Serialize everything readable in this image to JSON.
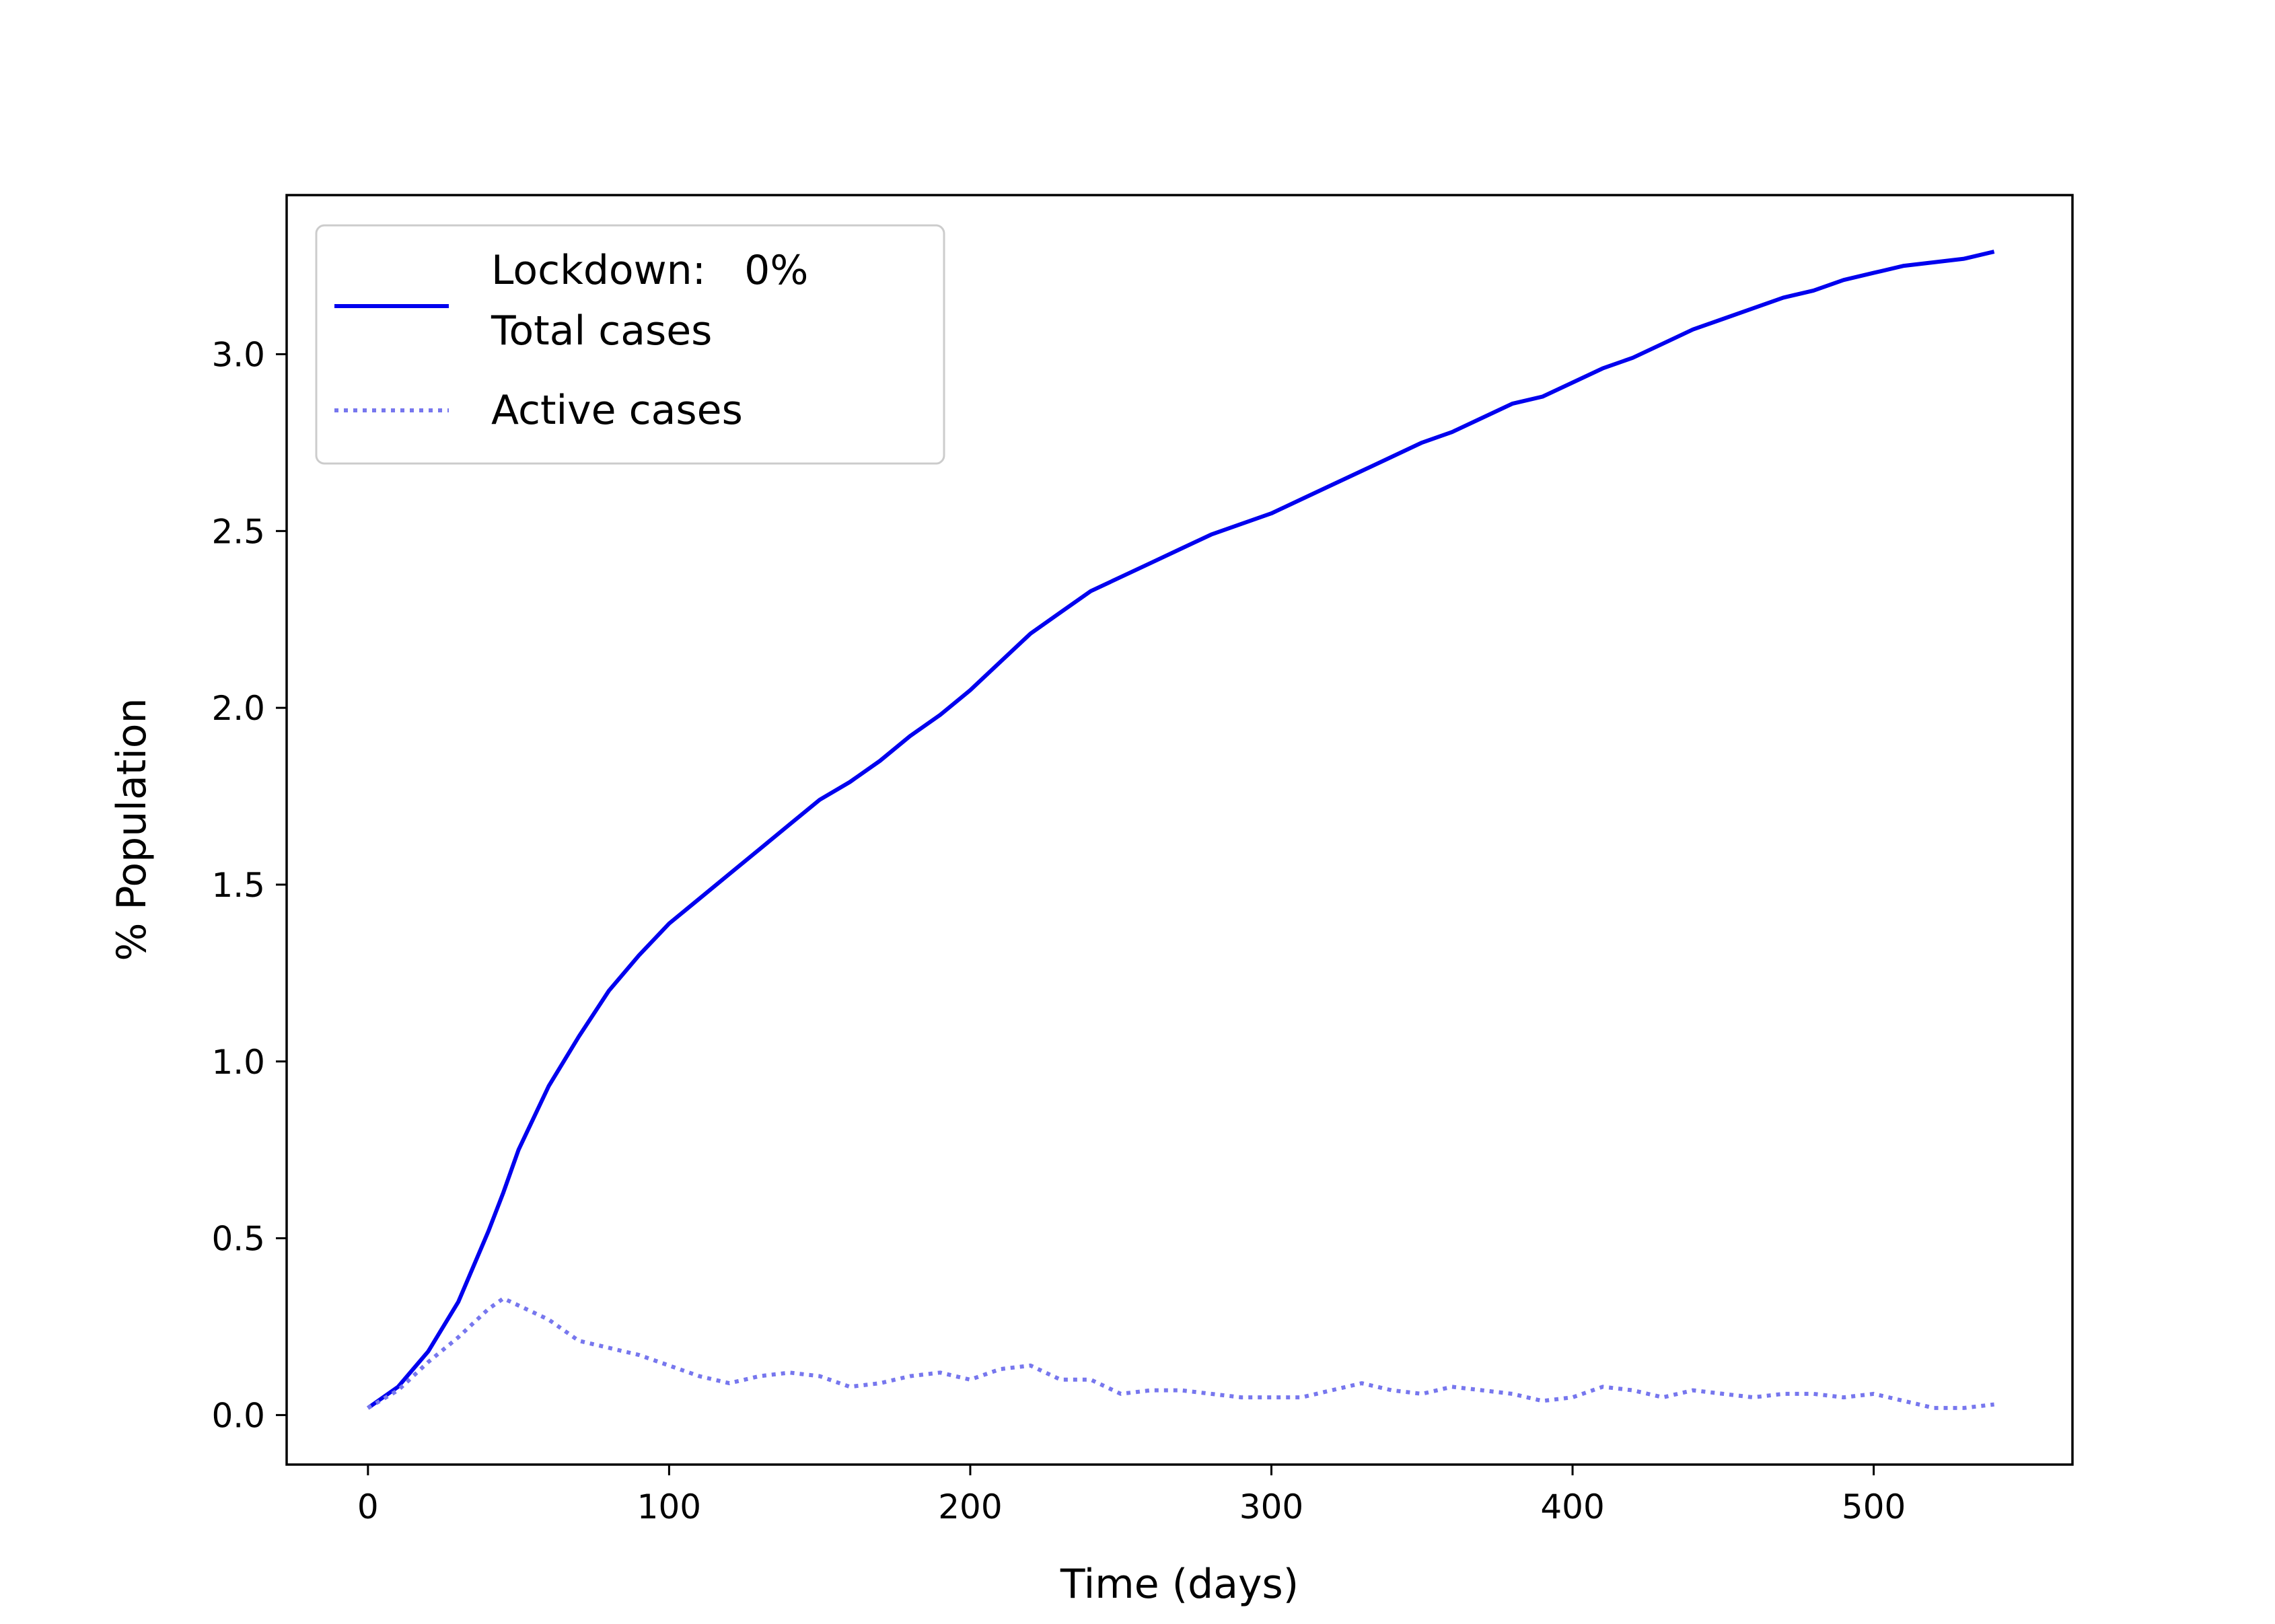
{
  "chart_data": {
    "type": "line",
    "title": "",
    "xlabel": "Time (days)",
    "ylabel": "% Population",
    "xlim": [
      -27,
      566
    ],
    "ylim": [
      -0.14,
      3.45
    ],
    "xticks": [
      0,
      100,
      200,
      300,
      400,
      500
    ],
    "xtick_labels": [
      "0",
      "100",
      "200",
      "300",
      "400",
      "500"
    ],
    "yticks": [
      0.0,
      0.5,
      1.0,
      1.5,
      2.0,
      2.5,
      3.0
    ],
    "ytick_labels": [
      "0.0",
      "0.5",
      "1.0",
      "1.5",
      "2.0",
      "2.5",
      "3.0"
    ],
    "grid": false,
    "legend": {
      "placement": "top-left",
      "entries": [
        {
          "line1": "Lockdown:   0%",
          "line2": "Total cases",
          "style": "solid",
          "color": "#0000ee"
        },
        {
          "line1": "Active cases",
          "line2": "",
          "style": "dotted",
          "color": "#7777ee"
        }
      ]
    },
    "series": [
      {
        "name": "Total cases",
        "style": "solid",
        "color": "#0000ee",
        "x": [
          0,
          10,
          20,
          30,
          40,
          45,
          50,
          60,
          70,
          80,
          90,
          100,
          110,
          120,
          130,
          140,
          150,
          160,
          170,
          180,
          190,
          200,
          210,
          220,
          230,
          240,
          250,
          260,
          270,
          280,
          290,
          300,
          310,
          320,
          330,
          340,
          350,
          360,
          370,
          380,
          390,
          400,
          410,
          420,
          430,
          440,
          450,
          460,
          470,
          480,
          490,
          500,
          510,
          520,
          530,
          540
        ],
        "y": [
          0.02,
          0.08,
          0.18,
          0.32,
          0.52,
          0.63,
          0.75,
          0.93,
          1.07,
          1.2,
          1.3,
          1.39,
          1.46,
          1.53,
          1.6,
          1.67,
          1.74,
          1.79,
          1.85,
          1.92,
          1.98,
          2.05,
          2.13,
          2.21,
          2.27,
          2.33,
          2.37,
          2.41,
          2.45,
          2.49,
          2.52,
          2.55,
          2.59,
          2.63,
          2.67,
          2.71,
          2.75,
          2.78,
          2.82,
          2.86,
          2.88,
          2.92,
          2.96,
          2.99,
          3.03,
          3.07,
          3.1,
          3.13,
          3.16,
          3.18,
          3.21,
          3.23,
          3.25,
          3.26,
          3.27,
          3.29
        ]
      },
      {
        "name": "Active cases",
        "style": "dotted",
        "color": "#7777ee",
        "x": [
          0,
          10,
          20,
          30,
          40,
          45,
          50,
          60,
          70,
          80,
          90,
          100,
          110,
          120,
          130,
          140,
          150,
          160,
          170,
          180,
          190,
          200,
          210,
          220,
          230,
          240,
          250,
          260,
          270,
          280,
          290,
          300,
          310,
          320,
          330,
          340,
          350,
          360,
          370,
          380,
          390,
          400,
          410,
          420,
          430,
          440,
          450,
          460,
          470,
          480,
          490,
          500,
          510,
          520,
          530,
          540
        ],
        "y": [
          0.02,
          0.07,
          0.15,
          0.22,
          0.3,
          0.33,
          0.31,
          0.27,
          0.21,
          0.19,
          0.17,
          0.14,
          0.11,
          0.09,
          0.11,
          0.12,
          0.11,
          0.08,
          0.09,
          0.11,
          0.12,
          0.1,
          0.13,
          0.14,
          0.1,
          0.1,
          0.06,
          0.07,
          0.07,
          0.06,
          0.05,
          0.05,
          0.05,
          0.07,
          0.09,
          0.07,
          0.06,
          0.08,
          0.07,
          0.06,
          0.04,
          0.05,
          0.08,
          0.07,
          0.05,
          0.07,
          0.06,
          0.05,
          0.06,
          0.06,
          0.05,
          0.06,
          0.04,
          0.02,
          0.02,
          0.03
        ]
      }
    ]
  }
}
